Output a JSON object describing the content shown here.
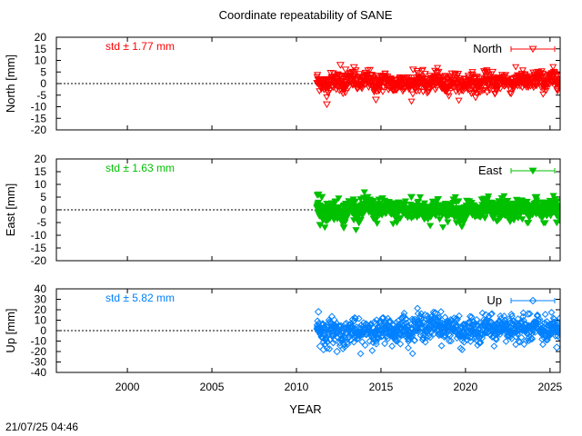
{
  "title": "Coordinate repeatability of SANE",
  "xlabel": "YEAR",
  "timestamp": "21/07/25 04:46",
  "chart_data": [
    {
      "type": "scatter",
      "panel": "north",
      "ylabel": "North [mm]",
      "legend": "North",
      "std_label": "std ± 1.77 mm",
      "color": "#ff0000",
      "marker": "triangle-down-open",
      "xlim": [
        1995.8,
        2025.6
      ],
      "ylim": [
        -20,
        20
      ],
      "yticks": [
        20,
        15,
        10,
        5,
        0,
        -5,
        -10,
        -15,
        -20
      ],
      "data_start": 2011.2,
      "data_end": 2025.6,
      "trend": [
        [
          2011.2,
          0
        ],
        [
          2012.0,
          0.5
        ],
        [
          2014.0,
          1.0
        ],
        [
          2016.0,
          0
        ],
        [
          2018.0,
          0.5
        ],
        [
          2020.0,
          0
        ],
        [
          2022.0,
          0.5
        ],
        [
          2025.6,
          1.5
        ]
      ],
      "spread": 2.0,
      "outliers": [
        [
          2011.8,
          -9
        ],
        [
          2012.6,
          8
        ],
        [
          2012.9,
          6
        ],
        [
          2013.4,
          7
        ],
        [
          2014.7,
          -7
        ],
        [
          2016.9,
          6
        ],
        [
          2018.4,
          5
        ],
        [
          2020.6,
          -6
        ],
        [
          2021.6,
          5
        ],
        [
          2024.3,
          5
        ],
        [
          2025.2,
          4
        ]
      ]
    },
    {
      "type": "scatter",
      "panel": "east",
      "ylabel": "East [mm]",
      "legend": "East",
      "std_label": "std ± 1.63 mm",
      "color": "#00c000",
      "marker": "triangle-down-filled",
      "xlim": [
        1995.8,
        2025.6
      ],
      "ylim": [
        -20,
        20
      ],
      "yticks": [
        20,
        15,
        10,
        5,
        0,
        -5,
        -10,
        -15,
        -20
      ],
      "data_start": 2011.2,
      "data_end": 2025.6,
      "trend": [
        [
          2011.2,
          0
        ],
        [
          2012.0,
          -0.5
        ],
        [
          2014.0,
          0.5
        ],
        [
          2016.0,
          -0.5
        ],
        [
          2018.0,
          0
        ],
        [
          2020.0,
          -0.5
        ],
        [
          2022.0,
          0
        ],
        [
          2025.6,
          0
        ]
      ],
      "spread": 2.0,
      "outliers": [
        [
          2011.3,
          6
        ],
        [
          2011.5,
          5
        ],
        [
          2011.4,
          -6
        ],
        [
          2012.8,
          -7
        ],
        [
          2014.2,
          5
        ],
        [
          2016.8,
          5
        ],
        [
          2019.3,
          4
        ],
        [
          2024.2,
          5
        ],
        [
          2025.4,
          -5
        ]
      ]
    },
    {
      "type": "scatter",
      "panel": "up",
      "ylabel": "Up [mm]",
      "legend": "Up",
      "std_label": "std ± 5.82 mm",
      "color": "#0080ff",
      "marker": "diamond-open",
      "xlim": [
        1995.8,
        2025.6
      ],
      "ylim": [
        -40,
        40
      ],
      "yticks": [
        40,
        30,
        20,
        10,
        0,
        -10,
        -20,
        -30,
        -40
      ],
      "data_start": 2011.2,
      "data_end": 2025.6,
      "trend": [
        [
          2011.2,
          0
        ],
        [
          2013.0,
          -2
        ],
        [
          2015.0,
          0
        ],
        [
          2017.0,
          3
        ],
        [
          2018.5,
          5
        ],
        [
          2020.0,
          -2
        ],
        [
          2022.0,
          3
        ],
        [
          2025.6,
          0
        ]
      ],
      "spread": 6.0,
      "outliers": [
        [
          2011.3,
          18
        ],
        [
          2011.6,
          -18
        ],
        [
          2011.4,
          -15
        ],
        [
          2012.4,
          -20
        ],
        [
          2017.6,
          15
        ],
        [
          2018.2,
          17
        ],
        [
          2021.2,
          15
        ],
        [
          2023.7,
          16
        ],
        [
          2025.4,
          -16
        ]
      ]
    }
  ],
  "xticks": [
    2000,
    2005,
    2010,
    2015,
    2020,
    2025
  ]
}
